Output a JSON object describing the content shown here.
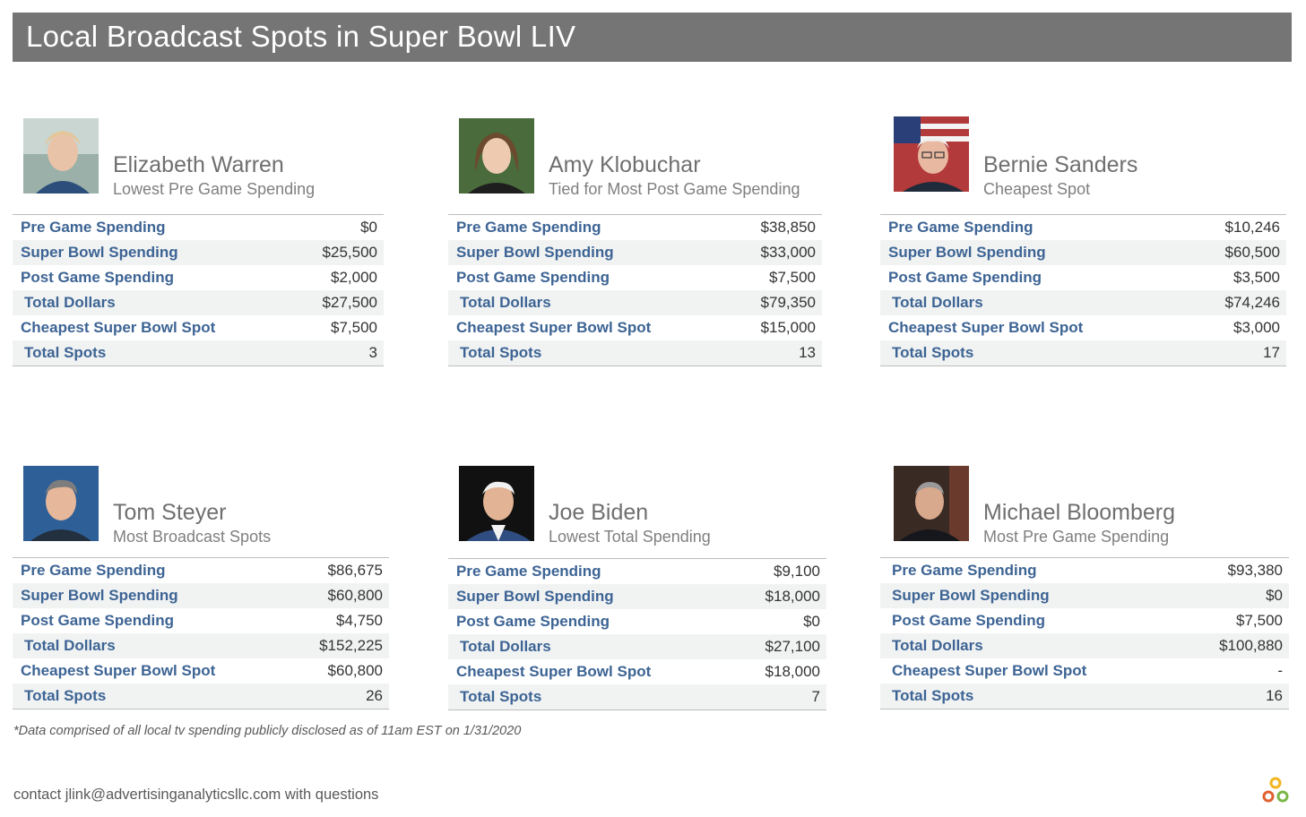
{
  "title": "Local Broadcast Spots in Super Bowl LIV",
  "cards": [
    {
      "name": "Elizabeth Warren",
      "subtitle": "Lowest Pre Game Spending",
      "rows": [
        {
          "label": "Pre Game Spending",
          "value": "$0"
        },
        {
          "label": "Super Bowl Spending",
          "value": "$25,500"
        },
        {
          "label": "Post Game Spending",
          "value": "$2,000"
        },
        {
          "label": "Total Dollars",
          "value": "$27,500"
        },
        {
          "label": "Cheapest Super Bowl Spot",
          "value": "$7,500"
        },
        {
          "label": "Total Spots",
          "value": "3"
        }
      ]
    },
    {
      "name": "Amy Klobuchar",
      "subtitle": "Tied for Most Post Game Spending",
      "rows": [
        {
          "label": "Pre Game Spending",
          "value": "$38,850"
        },
        {
          "label": "Super Bowl Spending",
          "value": "$33,000"
        },
        {
          "label": "Post Game Spending",
          "value": "$7,500"
        },
        {
          "label": "Total Dollars",
          "value": "$79,350"
        },
        {
          "label": "Cheapest Super Bowl Spot",
          "value": "$15,000"
        },
        {
          "label": "Total Spots",
          "value": "13"
        }
      ]
    },
    {
      "name": "Bernie Sanders",
      "subtitle": "Cheapest Spot",
      "rows": [
        {
          "label": "Pre Game Spending",
          "value": "$10,246"
        },
        {
          "label": "Super Bowl Spending",
          "value": "$60,500"
        },
        {
          "label": "Post Game Spending",
          "value": "$3,500"
        },
        {
          "label": "Total Dollars",
          "value": "$74,246"
        },
        {
          "label": "Cheapest Super Bowl Spot",
          "value": "$3,000"
        },
        {
          "label": "Total Spots",
          "value": "17"
        }
      ]
    },
    {
      "name": "Tom Steyer",
      "subtitle": "Most Broadcast Spots",
      "rows": [
        {
          "label": "Pre Game Spending",
          "value": "$86,675"
        },
        {
          "label": "Super Bowl Spending",
          "value": "$60,800"
        },
        {
          "label": "Post Game Spending",
          "value": "$4,750"
        },
        {
          "label": "Total Dollars",
          "value": "$152,225"
        },
        {
          "label": "Cheapest Super Bowl Spot",
          "value": "$60,800"
        },
        {
          "label": "Total Spots",
          "value": "26"
        }
      ]
    },
    {
      "name": "Joe Biden",
      "subtitle": "Lowest Total Spending",
      "rows": [
        {
          "label": "Pre Game Spending",
          "value": "$9,100"
        },
        {
          "label": "Super Bowl Spending",
          "value": "$18,000"
        },
        {
          "label": "Post Game Spending",
          "value": "$0"
        },
        {
          "label": "Total Dollars",
          "value": "$27,100"
        },
        {
          "label": "Cheapest Super Bowl Spot",
          "value": "$18,000"
        },
        {
          "label": "Total Spots",
          "value": "7"
        }
      ]
    },
    {
      "name": "Michael Bloomberg",
      "subtitle": "Most Pre Game Spending",
      "rows": [
        {
          "label": "Pre Game Spending",
          "value": "$93,380"
        },
        {
          "label": "Super Bowl Spending",
          "value": "$0"
        },
        {
          "label": "Post Game Spending",
          "value": "$7,500"
        },
        {
          "label": "Total Dollars",
          "value": "$100,880"
        },
        {
          "label": "Cheapest Super Bowl Spot",
          "value": "-"
        },
        {
          "label": "Total Spots",
          "value": "16"
        }
      ]
    }
  ],
  "footnote": "*Data comprised of all local tv spending publicly disclosed as of 11am EST on 1/31/2020",
  "contact": "contact jlink@advertisinganalyticsllc.com with questions",
  "colors": {
    "title_bar": "#757575",
    "label_blue": "#3d6494",
    "row_alt": "#f1f3f3",
    "logo_yellow": "#f2b51d",
    "logo_red": "#e0602f",
    "logo_green": "#7ab648"
  }
}
